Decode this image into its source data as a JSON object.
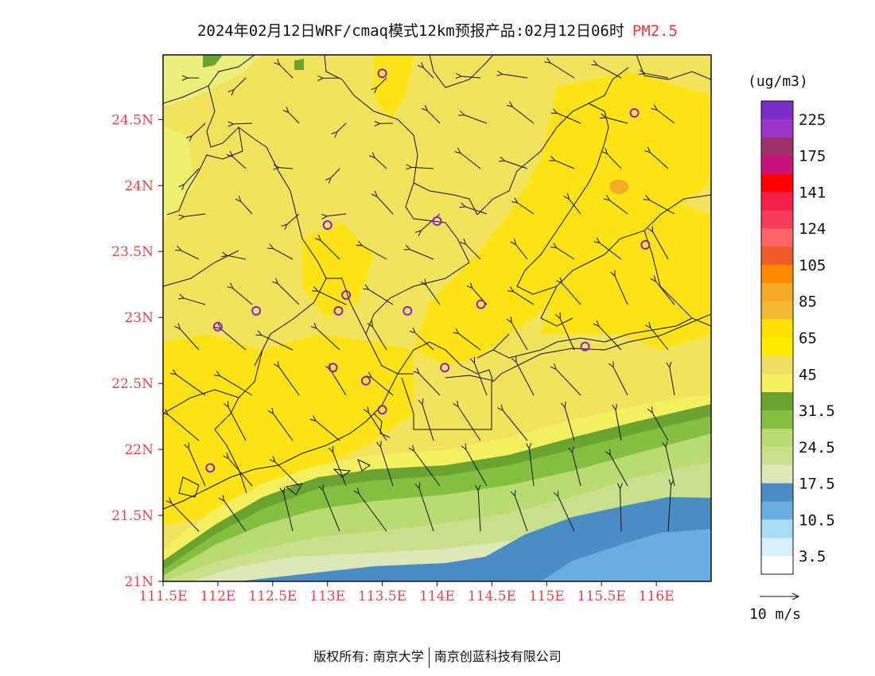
{
  "title": {
    "main": "2024年02月12日WRF/cmaq模式12km预报产品:02月12日06时",
    "pollutant": "PM2.5"
  },
  "axes": {
    "lat_ticks": [
      "24.5N",
      "24N",
      "23.5N",
      "23N",
      "22.5N",
      "22N",
      "21.5N",
      "21N"
    ],
    "lat_values": [
      24.5,
      24.0,
      23.5,
      23.0,
      22.5,
      22.0,
      21.5,
      21.0
    ],
    "lon_ticks": [
      "111.5E",
      "112E",
      "112.5E",
      "113E",
      "113.5E",
      "114E",
      "114.5E",
      "115E",
      "115.5E",
      "116E"
    ],
    "lon_values": [
      111.5,
      112.0,
      112.5,
      113.0,
      113.5,
      114.0,
      114.5,
      115.0,
      115.5,
      116.0
    ],
    "lon_range": [
      111.5,
      116.5
    ],
    "lat_range": [
      21.0,
      24.99
    ]
  },
  "colorbar": {
    "unit": "(ug/m3)",
    "labels": [
      "225",
      "175",
      "141",
      "124",
      "105",
      "85",
      "65",
      "45",
      "31.5",
      "24.5",
      "17.5",
      "10.5",
      "3.5"
    ],
    "colors": [
      "#7b2cc9",
      "#9a35cc",
      "#a0306a",
      "#c8117c",
      "#ff0000",
      "#f0204a",
      "#f53c5a",
      "#ff6464",
      "#ef5a28",
      "#ff8a00",
      "#f7a928",
      "#f5b833",
      "#ffe000",
      "#ffea00",
      "#f0e060",
      "#f4f060",
      "#6aa330",
      "#84c040",
      "#b9db70",
      "#c8e08a",
      "#dde8b8",
      "#4a8cc4",
      "#6aaee0",
      "#a8dcf4",
      "#d8eefa",
      "#ffffff"
    ]
  },
  "wind_scale": {
    "label": "10 m/s"
  },
  "footer": {
    "left": "版权所有: 南京大学",
    "right": "南京创蓝科技有限公司"
  },
  "stations": [
    [
      113.5,
      24.85
    ],
    [
      115.8,
      24.55
    ],
    [
      113.0,
      23.7
    ],
    [
      114.0,
      23.73
    ],
    [
      115.9,
      23.55
    ],
    [
      113.17,
      23.17
    ],
    [
      113.1,
      23.05
    ],
    [
      112.35,
      23.05
    ],
    [
      112.0,
      22.93
    ],
    [
      113.73,
      23.05
    ],
    [
      114.4,
      23.1
    ],
    [
      115.35,
      22.78
    ],
    [
      113.05,
      22.62
    ],
    [
      113.35,
      22.52
    ],
    [
      114.07,
      22.62
    ],
    [
      113.5,
      22.3
    ],
    [
      111.93,
      21.86
    ]
  ]
}
